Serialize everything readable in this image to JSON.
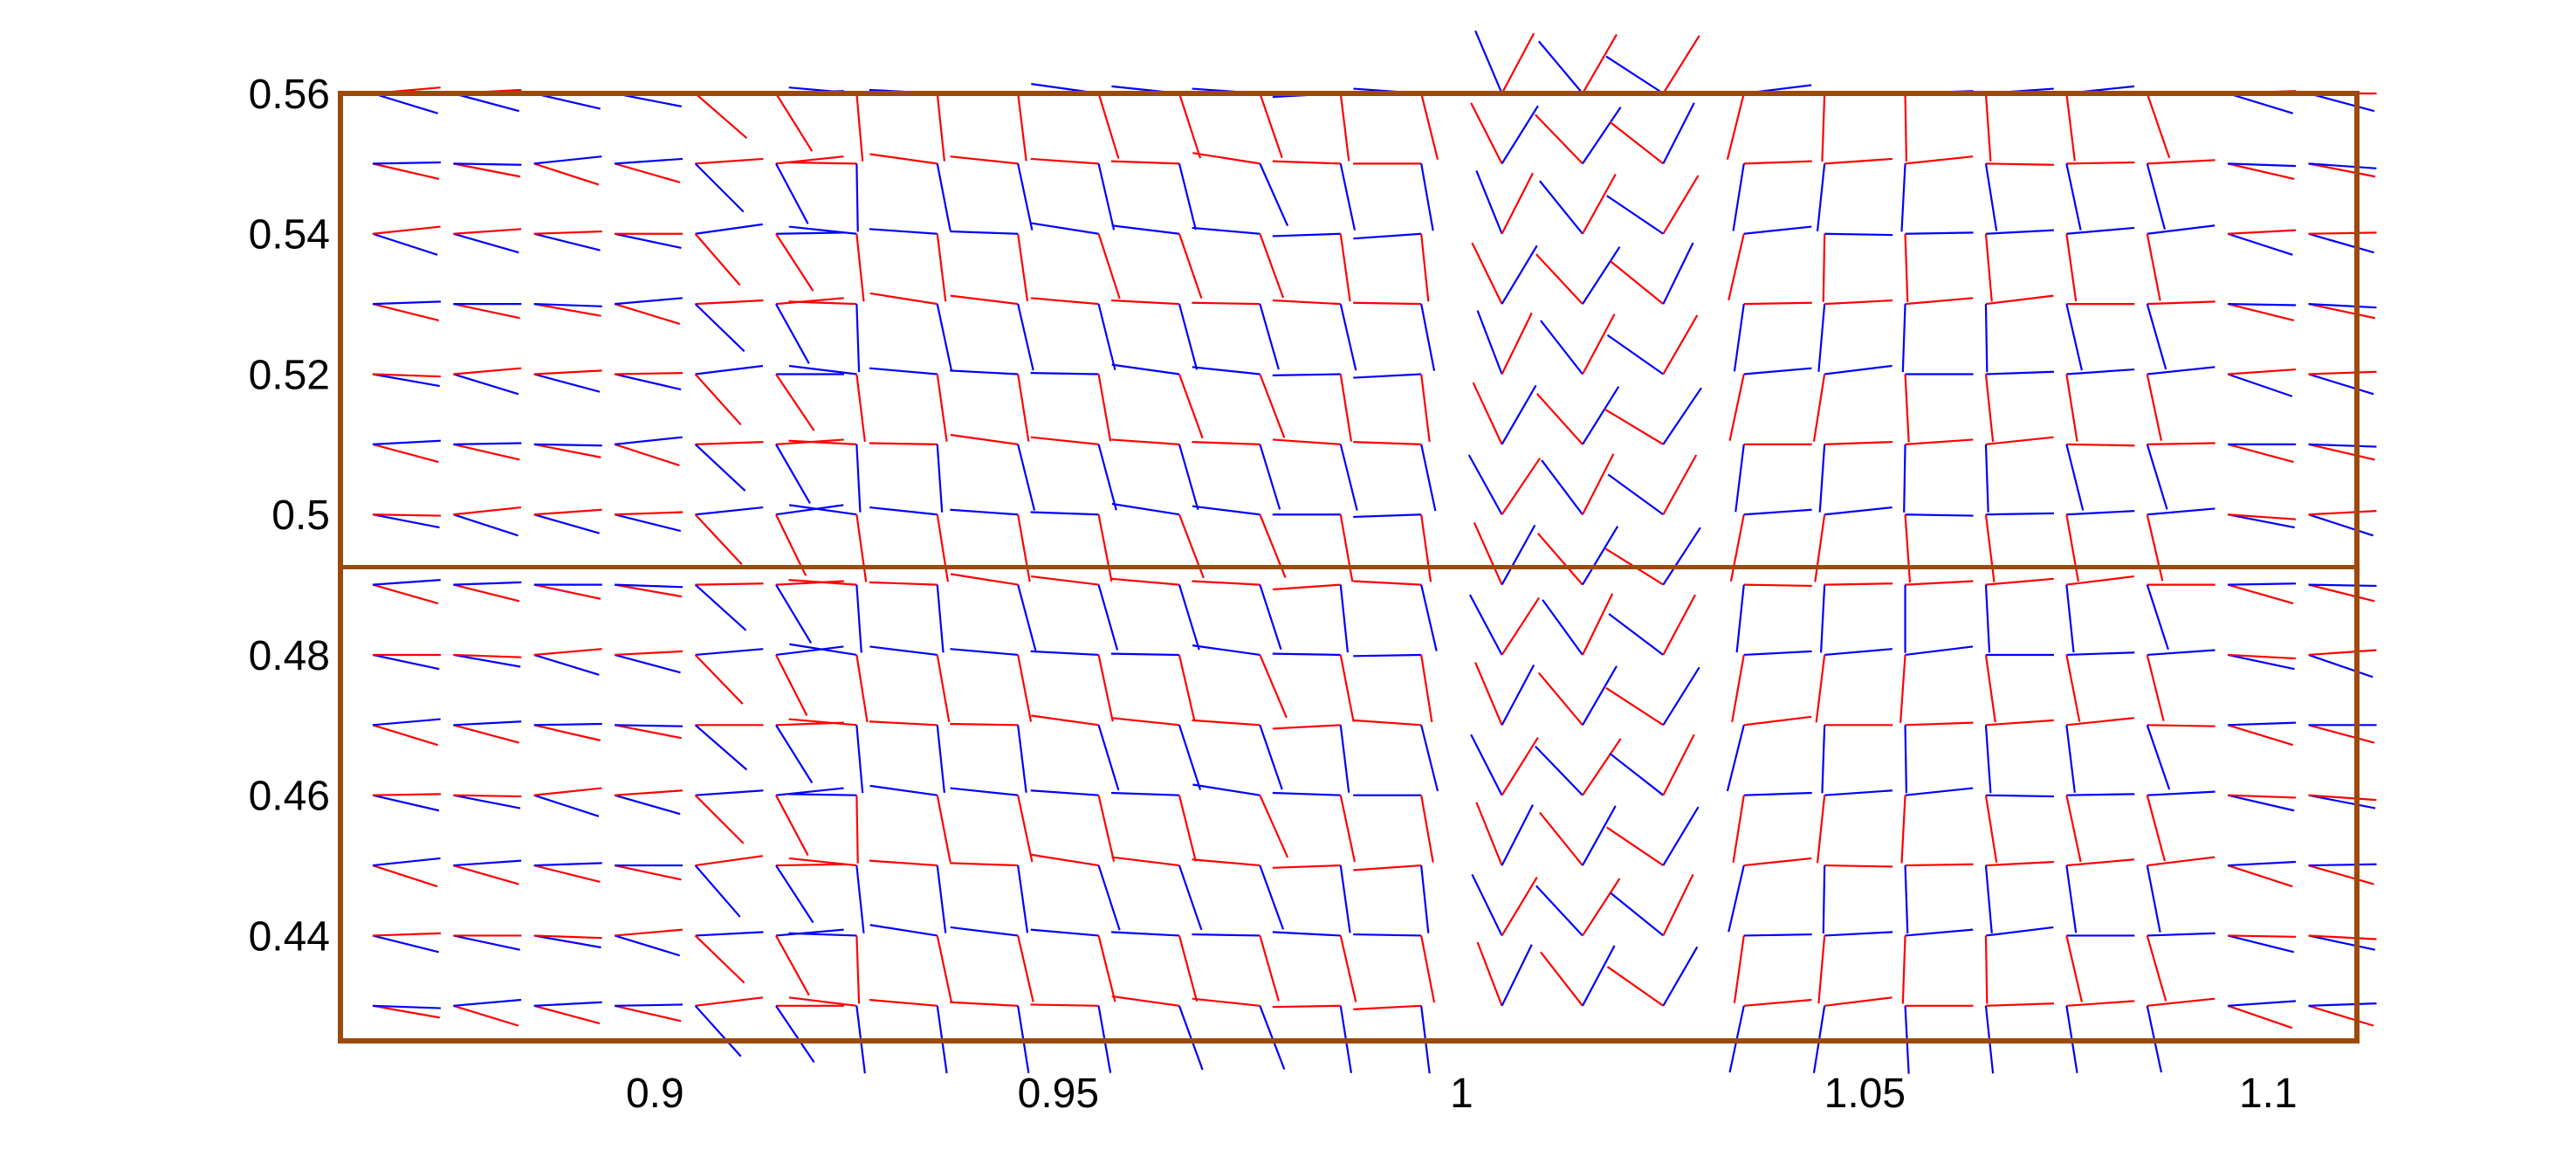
{
  "chart_data": {
    "type": "quiver",
    "title": "",
    "xlabel": "",
    "ylabel": "",
    "xlim": [
      0.861,
      1.111
    ],
    "ylim": [
      0.425,
      0.56
    ],
    "grid": false,
    "legend": "none",
    "x_ticks": [
      "0.9",
      "0.95",
      "1",
      "1.05",
      "1.1"
    ],
    "y_ticks": [
      "0.56",
      "0.54",
      "0.52",
      "0.5",
      "0.48",
      "0.46",
      "0.44"
    ],
    "x_tick_values": [
      0.9,
      0.95,
      1.0,
      1.05,
      1.1
    ],
    "y_tick_values": [
      0.56,
      0.54,
      0.52,
      0.5,
      0.48,
      0.46,
      0.44
    ],
    "grid_x_start": 0.865,
    "grid_x_step": 0.01,
    "grid_x_count": 25,
    "grid_y_start": 0.43,
    "grid_y_step": 0.01,
    "grid_y_count": 14,
    "interface_y": 0.4925,
    "colors": {
      "frame": "#9c4a0c",
      "series_1": "#ff0000",
      "series_2": "#0000ff"
    },
    "series": [
      {
        "color": "#ff0000"
      },
      {
        "color": "#0000ff"
      }
    ]
  }
}
